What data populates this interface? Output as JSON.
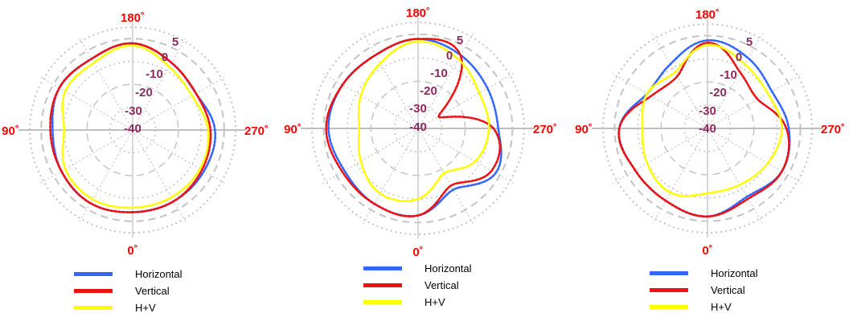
{
  "angle_labels": {
    "top": "180˚",
    "right": "270˚",
    "bottom": "0˚",
    "left": "90˚"
  },
  "ring_labels": [
    "5",
    "0",
    "-10",
    "-20",
    "-30",
    "-40"
  ],
  "legend": [
    {
      "label": "Horizontal",
      "color": "#3366ff"
    },
    {
      "label": "Vertical",
      "color": "#ee1111"
    },
    {
      "label": "H+V",
      "color": "#ffff00"
    }
  ],
  "chart_data": [
    {
      "type": "polar",
      "angle_unit": "degrees",
      "r_range": [
        -40,
        5
      ],
      "r_ticks": [
        5,
        0,
        -10,
        -20,
        -30,
        -40
      ],
      "angle_ticks": [
        0,
        90,
        180,
        270
      ],
      "angle_direction": "0 at bottom, 90 at left, 180 at top, 270 at right",
      "grid": true,
      "legend": "bottom",
      "series": [
        {
          "name": "Horizontal",
          "angles": [
            0,
            30,
            60,
            90,
            120,
            150,
            180,
            210,
            240,
            270,
            300,
            330
          ],
          "values": [
            -4,
            -3,
            -4,
            -5,
            -3,
            -4,
            -2,
            -6,
            -8,
            -4,
            -4,
            -4
          ]
        },
        {
          "name": "Vertical",
          "angles": [
            0,
            30,
            60,
            90,
            120,
            150,
            180,
            210,
            240,
            270,
            300,
            330
          ],
          "values": [
            -4,
            -3,
            -4,
            -4,
            -3,
            -4,
            -2,
            -6,
            -8,
            -6,
            -5,
            -4
          ]
        },
        {
          "name": "H+V",
          "angles": [
            0,
            30,
            60,
            90,
            120,
            150,
            180,
            210,
            240,
            270,
            300,
            330
          ],
          "values": [
            -6,
            -5,
            -6,
            -10,
            -6,
            -6,
            -3,
            -8,
            -10,
            -7,
            -6,
            -6
          ]
        }
      ]
    },
    {
      "type": "polar",
      "angle_unit": "degrees",
      "r_range": [
        -40,
        5
      ],
      "r_ticks": [
        5,
        0,
        -10,
        -20,
        -30,
        -40
      ],
      "angle_ticks": [
        0,
        90,
        180,
        270
      ],
      "angle_direction": "0 at bottom, 90 at left, 180 at top, 270 at right",
      "grid": true,
      "legend": "bottom",
      "series": [
        {
          "name": "Horizontal",
          "angles": [
            0,
            30,
            60,
            90,
            120,
            150,
            180,
            210,
            240,
            270,
            300,
            330
          ],
          "values": [
            -3,
            -3,
            -4,
            -2,
            -3,
            -4,
            -2,
            -4,
            -6,
            -6,
            -2,
            -10
          ]
        },
        {
          "name": "Vertical",
          "angles": [
            0,
            30,
            60,
            90,
            120,
            150,
            180,
            210,
            240,
            270,
            300,
            330
          ],
          "values": [
            -3,
            -3,
            -3,
            -1,
            -3,
            -4,
            -2,
            -4,
            -30,
            -8,
            -4,
            -12
          ]
        },
        {
          "name": "H+V",
          "angles": [
            0,
            30,
            60,
            90,
            120,
            150,
            180,
            210,
            240,
            270,
            300,
            330
          ],
          "values": [
            -10,
            -8,
            -12,
            -15,
            -12,
            -8,
            -3,
            -6,
            -10,
            -10,
            -12,
            -18
          ]
        }
      ]
    },
    {
      "type": "polar",
      "angle_unit": "degrees",
      "r_range": [
        -40,
        5
      ],
      "r_ticks": [
        5,
        0,
        -10,
        -20,
        -30,
        -40
      ],
      "angle_ticks": [
        0,
        90,
        180,
        270
      ],
      "angle_direction": "0 at bottom, 90 at left, 180 at top, 270 at right",
      "grid": true,
      "legend": "bottom",
      "series": [
        {
          "name": "Horizontal",
          "angles": [
            0,
            30,
            60,
            90,
            120,
            150,
            180,
            210,
            240,
            270,
            300,
            330
          ],
          "values": [
            -2,
            -4,
            -4,
            -2,
            -10,
            -8,
            -2,
            -5,
            -8,
            -5,
            -3,
            -6
          ]
        },
        {
          "name": "Vertical",
          "angles": [
            0,
            30,
            60,
            90,
            120,
            150,
            180,
            210,
            240,
            270,
            300,
            330
          ],
          "values": [
            -2,
            -4,
            -4,
            -2,
            -12,
            -14,
            -3,
            -12,
            -15,
            -6,
            -3,
            -5
          ]
        },
        {
          "name": "H+V",
          "angles": [
            0,
            30,
            60,
            90,
            120,
            150,
            180,
            210,
            240,
            270,
            300,
            330
          ],
          "values": [
            -12,
            -8,
            -10,
            -12,
            -10,
            -12,
            -4,
            -8,
            -10,
            -8,
            -10,
            -12
          ]
        }
      ]
    }
  ]
}
